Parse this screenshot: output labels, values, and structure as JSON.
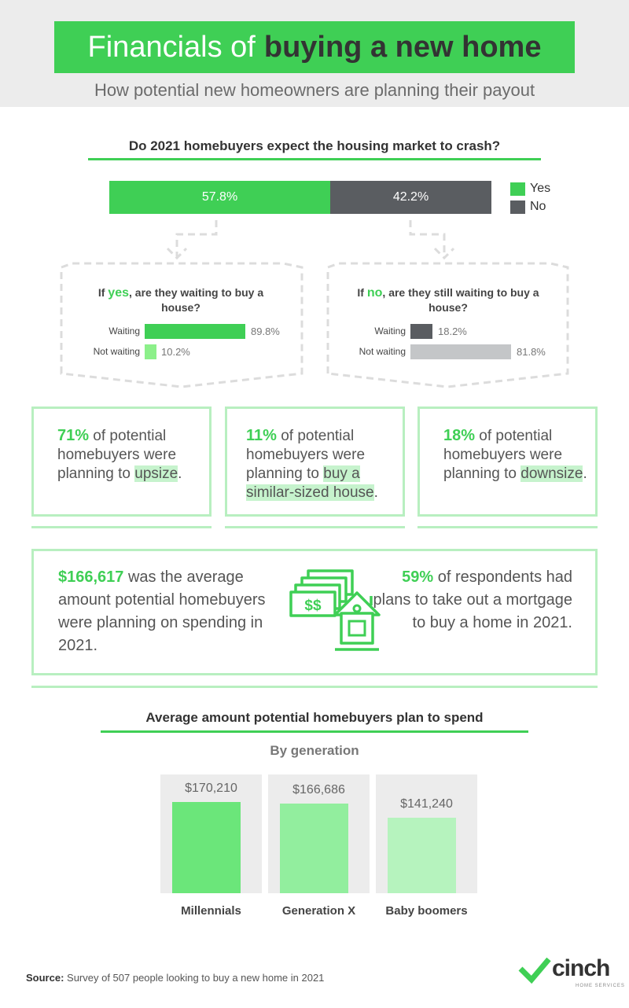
{
  "header": {
    "title_prefix": "Financials of",
    "title_bold": "buying a new home",
    "subtitle": "How potential new homeowners are planning their payout"
  },
  "crash": {
    "question": "Do 2021 homebuyers expect the housing market to crash?",
    "yes_pct_label": "57.8%",
    "no_pct_label": "42.2%",
    "legend_yes": "Yes",
    "legend_no": "No",
    "colors": {
      "yes": "#3fcf55",
      "no": "#5a5d61"
    }
  },
  "if_yes": {
    "q_pre": "If",
    "q_hl": "yes",
    "q_rest": ", are they waiting to buy a house?",
    "waiting_label": "Waiting",
    "waiting_val": "89.8%",
    "not_label": "Not waiting",
    "not_val": "10.2%"
  },
  "if_no": {
    "q_pre": "If",
    "q_hl": "no",
    "q_rest": ", are they still waiting to buy a house?",
    "waiting_label": "Waiting",
    "waiting_val": "18.2%",
    "not_label": "Not waiting",
    "not_val": "81.8%"
  },
  "cards": [
    {
      "big": "71%",
      "t1": " of potential homebuyers were planning to ",
      "hl": "upsize",
      "t2": "."
    },
    {
      "big": "11%",
      "t1": " of potential homebuyers were planning to ",
      "hl": "buy a similar-sized house",
      "t2": "."
    },
    {
      "big": "18%",
      "t1": " of potential homebuyers were planning to ",
      "hl": "downsize",
      "t2": "."
    }
  ],
  "spend": {
    "left_big": "$166,617",
    "left_rest": " was the average amount potential homebuyers were planning on spending in 2021.",
    "right_big": "59%",
    "right_rest": " of respondents had plans to take out a mortgage to buy a home in 2021.",
    "icon": "money-house-icon"
  },
  "chart_data": {
    "type": "bar",
    "title": "Average amount potential homebuyers plan to spend",
    "subtitle": "By generation",
    "categories": [
      "Millennials",
      "Generation X",
      "Baby boomers"
    ],
    "values": [
      170210,
      166686,
      141240
    ],
    "value_labels": [
      "$170,210",
      "$166,686",
      "$141,240"
    ],
    "colors": [
      "#6be67a",
      "#92ee9e",
      "#b6f3be"
    ]
  },
  "source": {
    "label": "Source:",
    "text": " Survey of 507 people looking to buy a new home in 2021"
  },
  "logo": {
    "text": "cinch",
    "sub": "HOME SERVICES"
  }
}
